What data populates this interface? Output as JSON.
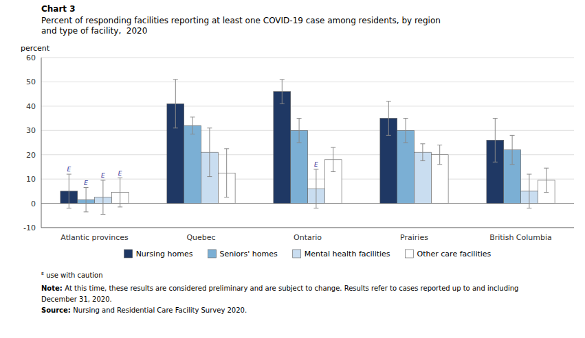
{
  "chart_data": {
    "type": "bar",
    "title": "Chart 3",
    "subtitle": [
      "Percent of responding facilities reporting at least one COVID-19 case among residents, by region",
      "and type of facility,  2020"
    ],
    "ylabel": "percent",
    "categories": [
      "Atlantic provinces",
      "Quebec",
      "Ontario",
      "Prairies",
      "British Columbia"
    ],
    "series": [
      {
        "name": "Nursing homes",
        "color": "#1f3864",
        "values": [
          5,
          41,
          46,
          35,
          26
        ],
        "errors": [
          7,
          10,
          5,
          7,
          9
        ],
        "flags": [
          "E",
          null,
          null,
          null,
          null
        ]
      },
      {
        "name": "Seniors' homes",
        "color": "#7bafd4",
        "values": [
          1.5,
          32,
          30,
          30,
          22
        ],
        "errors": [
          5,
          3.5,
          5,
          5,
          6
        ],
        "flags": [
          "E",
          null,
          null,
          null,
          null
        ]
      },
      {
        "name": "Mental health facilities",
        "color": "#c9ddf0",
        "values": [
          2.5,
          21,
          6,
          21,
          5
        ],
        "errors": [
          7,
          10,
          8,
          3.5,
          7
        ],
        "flags": [
          "E",
          null,
          "E",
          null,
          null
        ]
      },
      {
        "name": "Other care facilities",
        "color": "#ffffff",
        "values": [
          4.5,
          12.5,
          18,
          20,
          9.5
        ],
        "errors": [
          6,
          10,
          5,
          4,
          5
        ],
        "flags": [
          "E",
          null,
          null,
          null,
          null
        ]
      }
    ],
    "ylim": [
      -10,
      60
    ],
    "yticks": [
      -10,
      0,
      10,
      20,
      30,
      40,
      50,
      60
    ],
    "grid": true,
    "legend": "bottom",
    "annotations": [
      {
        "text": "ᴱ use with caution"
      },
      {
        "label": "Note:",
        "text": "At this time, these results are considered preliminary and are subject to change. Results refer to cases reported up to and including"
      },
      {
        "text": "December 31, 2020."
      },
      {
        "label": "Source:",
        "text": "Nursing and Residential Care Facility Survey 2020."
      }
    ]
  }
}
